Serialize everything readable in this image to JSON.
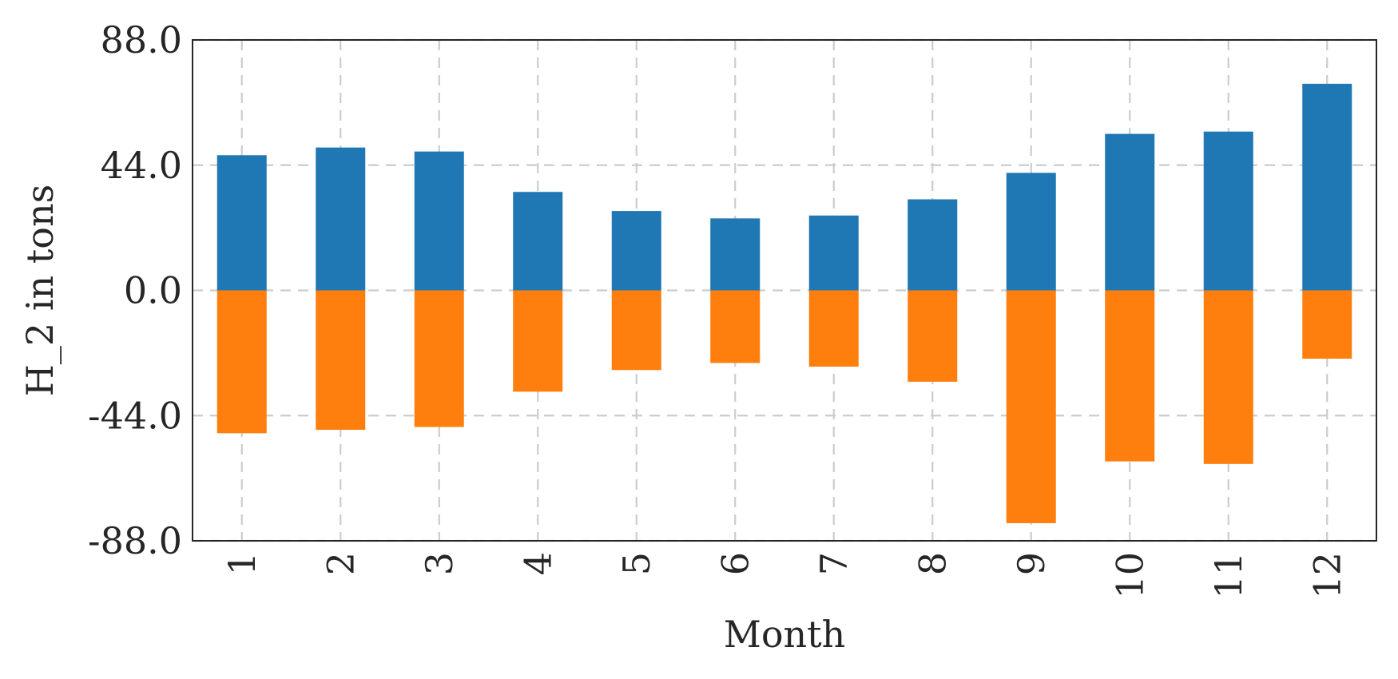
{
  "chart_data": {
    "type": "bar",
    "stacked": true,
    "categories": [
      "1",
      "2",
      "3",
      "4",
      "5",
      "6",
      "7",
      "8",
      "9",
      "10",
      "11",
      "12"
    ],
    "series": [
      {
        "values": [
          47.5,
          50.2,
          48.8,
          34.6,
          27.9,
          25.3,
          26.3,
          32.0,
          41.3,
          55.0,
          55.8,
          72.6
        ],
        "color": "#1f77b4"
      },
      {
        "values": [
          -50.2,
          -49.0,
          -48.0,
          -35.6,
          -28.0,
          -25.5,
          -26.8,
          -32.1,
          -81.8,
          -60.1,
          -61.0,
          -24.0
        ],
        "color": "#ff7f0e"
      }
    ],
    "xlabel": "Month",
    "ylabel": "H_2 in tons",
    "ylim": [
      -88.0,
      88.0
    ],
    "yticks": [
      "88.0",
      "44.0",
      "0.0",
      "-44.0",
      "-88.0"
    ],
    "ytick_values": [
      88.0,
      44.0,
      0.0,
      -44.0,
      -88.0
    ],
    "grid": true,
    "grid_style": "dashed",
    "grid_color": "#cccccc",
    "frame_color": "#262626"
  }
}
